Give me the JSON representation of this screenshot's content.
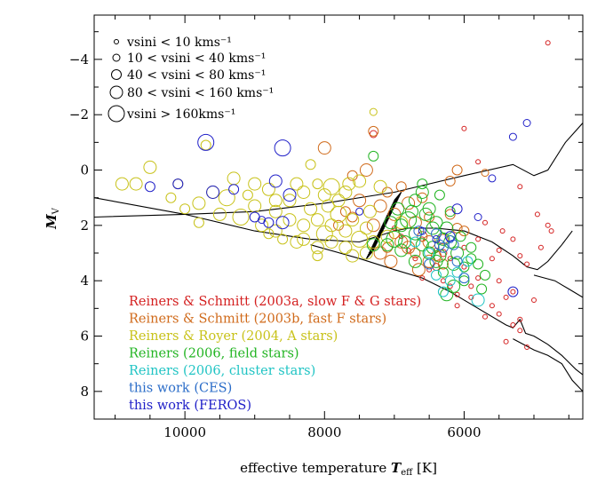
{
  "chart_data": {
    "type": "scatter",
    "xlabel_main": "effective temperature ",
    "xlabel_var": "T",
    "xlabel_sub": "eff",
    "xlabel_unit": " [K]",
    "ylabel_var": "M",
    "ylabel_sub": "V",
    "x_reversed": true,
    "y_reversed": true,
    "xlim": [
      11300,
      4300
    ],
    "ylim": [
      9.0,
      -5.6
    ],
    "x_ticks": [
      10000,
      8000,
      6000
    ],
    "x_tick_labels": [
      "10000",
      "8000",
      "6000"
    ],
    "y_ticks": [
      -4,
      -2,
      0,
      2,
      4,
      6,
      8
    ],
    "y_tick_labels": [
      "−4",
      "−2",
      "0",
      "2",
      "4",
      "6",
      "8"
    ],
    "size_legend": [
      {
        "label": "vsini <  10 kms⁻¹",
        "radius": 2.5
      },
      {
        "label": " 10 < vsini <  40 kms⁻¹",
        "radius": 4
      },
      {
        "label": " 40 < vsini <  80 kms⁻¹",
        "radius": 5.5
      },
      {
        "label": " 80 < vsini < 160 kms⁻¹",
        "radius": 7
      },
      {
        "label": "vsini > 160kms⁻¹",
        "radius": 9
      }
    ],
    "series": [
      {
        "name": "Reiners & Schmitt (2003a, slow F & G stars)",
        "color": "#d42020"
      },
      {
        "name": "Reiners & Schmitt (2003b, fast F stars)",
        "color": "#d06a1a"
      },
      {
        "name": "Reiners & Royer (2004, A stars)",
        "color": "#c8c21a"
      },
      {
        "name": "Reiners (2006, field stars)",
        "color": "#22b422"
      },
      {
        "name": "Reiners (2006, cluster stars)",
        "color": "#20c4c4"
      },
      {
        "name": "this work (CES)",
        "color": "#2a6cc8"
      },
      {
        "name": "this work (FEROS)",
        "color": "#2020c8"
      }
    ],
    "isochrones": [
      [
        [
          11300,
          1.7
        ],
        [
          10000,
          1.6
        ],
        [
          9000,
          1.5
        ],
        [
          8000,
          1.2
        ],
        [
          7000,
          0.8
        ],
        [
          6000,
          0.2
        ],
        [
          5300,
          -0.2
        ],
        [
          5000,
          0.2
        ],
        [
          4800,
          0.0
        ],
        [
          4550,
          -1.0
        ],
        [
          4300,
          -1.7
        ]
      ],
      [
        [
          11300,
          1.0
        ],
        [
          10000,
          1.6
        ],
        [
          9000,
          2.2
        ],
        [
          8200,
          2.5
        ],
        [
          7500,
          2.6
        ],
        [
          7000,
          2.2
        ],
        [
          6800,
          2.1
        ],
        [
          6400,
          2.1
        ],
        [
          6000,
          2.2
        ],
        [
          5600,
          2.6
        ],
        [
          5300,
          3.1
        ],
        [
          5100,
          3.5
        ],
        [
          4950,
          3.6
        ],
        [
          4800,
          3.3
        ],
        [
          4600,
          2.7
        ],
        [
          4450,
          2.2
        ]
      ],
      [
        [
          8200,
          2.7
        ],
        [
          7500,
          3.2
        ],
        [
          7000,
          3.6
        ],
        [
          6600,
          3.9
        ],
        [
          6200,
          4.4
        ],
        [
          5800,
          5.0
        ],
        [
          5400,
          5.6
        ],
        [
          5300,
          5.7
        ],
        [
          5200,
          5.4
        ],
        [
          5120,
          5.9
        ],
        [
          5000,
          6.0
        ],
        [
          4800,
          6.3
        ],
        [
          4600,
          6.7
        ],
        [
          4400,
          7.2
        ],
        [
          4300,
          7.4
        ]
      ],
      [
        [
          5000,
          3.8
        ],
        [
          4700,
          4.0
        ],
        [
          4500,
          4.3
        ],
        [
          4300,
          4.6
        ]
      ],
      [
        [
          5300,
          6.1
        ],
        [
          5000,
          6.5
        ],
        [
          4800,
          6.7
        ],
        [
          4600,
          7.0
        ],
        [
          4450,
          7.6
        ],
        [
          4300,
          8.0
        ]
      ]
    ],
    "hatch_band": {
      "x": [
        7350,
        6950
      ],
      "y_top": [
        2.9,
        0.8
      ],
      "y_bottom": [
        3.2,
        1.1
      ]
    },
    "points": [
      [
        0,
        7300,
        -1.3,
        1
      ],
      [
        0,
        6000,
        -1.5,
        0
      ],
      [
        0,
        5800,
        -0.3,
        0
      ],
      [
        0,
        5200,
        0.6,
        0
      ],
      [
        0,
        4800,
        -4.6,
        0
      ],
      [
        0,
        4950,
        1.6,
        0
      ],
      [
        0,
        4900,
        2.8,
        0
      ],
      [
        0,
        4800,
        2.0,
        0
      ],
      [
        0,
        4750,
        2.2,
        0
      ],
      [
        0,
        5200,
        3.1,
        0
      ],
      [
        0,
        5100,
        3.4,
        0
      ],
      [
        0,
        5400,
        4.6,
        0
      ],
      [
        0,
        5300,
        4.4,
        0
      ],
      [
        0,
        5500,
        5.2,
        0
      ],
      [
        0,
        5200,
        5.8,
        0
      ],
      [
        0,
        5100,
        6.4,
        0
      ],
      [
        0,
        5400,
        6.2,
        0
      ],
      [
        0,
        5600,
        4.9,
        0
      ],
      [
        0,
        5700,
        5.3,
        0
      ],
      [
        0,
        5900,
        4.6,
        0
      ],
      [
        0,
        6100,
        4.9,
        0
      ],
      [
        0,
        5800,
        3.9,
        0
      ],
      [
        0,
        6000,
        3.5,
        0
      ],
      [
        0,
        6200,
        3.2,
        0
      ],
      [
        0,
        6300,
        3.0,
        1
      ],
      [
        0,
        6400,
        2.9,
        0
      ],
      [
        0,
        6600,
        2.5,
        0
      ],
      [
        0,
        6700,
        3.2,
        0
      ],
      [
        0,
        6500,
        3.6,
        0
      ],
      [
        0,
        6800,
        2.9,
        0
      ],
      [
        0,
        6900,
        2.4,
        0
      ],
      [
        0,
        7000,
        2.1,
        0
      ],
      [
        0,
        6600,
        3.9,
        0
      ],
      [
        0,
        6400,
        3.5,
        1
      ],
      [
        0,
        6200,
        4.2,
        0
      ],
      [
        0,
        6100,
        4.5,
        0
      ],
      [
        0,
        5900,
        4.2,
        0
      ],
      [
        0,
        6300,
        4.0,
        0
      ],
      [
        0,
        5600,
        3.2,
        0
      ],
      [
        0,
        5500,
        2.9,
        0
      ],
      [
        0,
        5300,
        2.5,
        0
      ],
      [
        0,
        5800,
        2.5,
        0
      ],
      [
        0,
        6000,
        2.8,
        0
      ],
      [
        0,
        5700,
        1.9,
        0
      ],
      [
        0,
        5450,
        2.2,
        0
      ],
      [
        0,
        5500,
        4.0,
        0
      ],
      [
        0,
        5300,
        5.6,
        0
      ],
      [
        0,
        5200,
        5.4,
        0
      ],
      [
        0,
        5000,
        4.7,
        0
      ],
      [
        1,
        7300,
        -1.4,
        2
      ],
      [
        1,
        7100,
        0.8,
        2
      ],
      [
        1,
        6900,
        0.6,
        2
      ],
      [
        1,
        7400,
        0.0,
        3
      ],
      [
        1,
        7600,
        0.2,
        2
      ],
      [
        1,
        7500,
        1.1,
        3
      ],
      [
        1,
        7700,
        1.5,
        2
      ],
      [
        1,
        7200,
        1.3,
        3
      ],
      [
        1,
        7000,
        1.6,
        3
      ],
      [
        1,
        6800,
        1.2,
        3
      ],
      [
        1,
        6600,
        1.0,
        2
      ],
      [
        1,
        6700,
        1.9,
        3
      ],
      [
        1,
        7000,
        2.3,
        2
      ],
      [
        1,
        6900,
        2.6,
        3
      ],
      [
        1,
        6800,
        2.8,
        3
      ],
      [
        1,
        6600,
        2.4,
        2
      ],
      [
        1,
        6500,
        2.6,
        3
      ],
      [
        1,
        6400,
        3.1,
        2
      ],
      [
        1,
        6300,
        3.4,
        2
      ],
      [
        1,
        6700,
        3.0,
        2
      ],
      [
        1,
        7100,
        2.8,
        2
      ],
      [
        1,
        7200,
        3.0,
        3
      ],
      [
        1,
        6500,
        3.3,
        3
      ],
      [
        1,
        7800,
        2.0,
        2
      ],
      [
        1,
        8000,
        -0.8,
        3
      ],
      [
        1,
        6200,
        0.4,
        2
      ],
      [
        1,
        6100,
        0.0,
        2
      ],
      [
        1,
        6500,
        1.7,
        2
      ],
      [
        1,
        6300,
        2.5,
        2
      ],
      [
        1,
        7300,
        2.0,
        3
      ],
      [
        1,
        7050,
        3.3,
        3
      ],
      [
        1,
        6650,
        3.6,
        3
      ],
      [
        1,
        6100,
        2.1,
        2
      ],
      [
        1,
        6200,
        1.6,
        2
      ],
      [
        1,
        6000,
        2.2,
        2
      ],
      [
        1,
        7600,
        1.7,
        2
      ],
      [
        1,
        5700,
        0.1,
        1
      ],
      [
        2,
        7300,
        -2.1,
        1
      ],
      [
        2,
        9700,
        -0.9,
        2
      ],
      [
        2,
        10100,
        0.5,
        2
      ],
      [
        2,
        10700,
        0.5,
        3
      ],
      [
        2,
        10500,
        -0.1,
        3
      ],
      [
        2,
        10200,
        1.0,
        2
      ],
      [
        2,
        9800,
        1.2,
        3
      ],
      [
        2,
        9600,
        0.8,
        3
      ],
      [
        2,
        9400,
        1.0,
        4
      ],
      [
        2,
        9300,
        0.3,
        3
      ],
      [
        2,
        9000,
        0.5,
        3
      ],
      [
        2,
        8800,
        0.7,
        3
      ],
      [
        2,
        8700,
        1.1,
        3
      ],
      [
        2,
        8400,
        0.5,
        3
      ],
      [
        2,
        8300,
        0.8,
        3
      ],
      [
        2,
        8100,
        0.5,
        2
      ],
      [
        2,
        8000,
        0.9,
        3
      ],
      [
        2,
        7900,
        0.6,
        4
      ],
      [
        2,
        7800,
        1.1,
        3
      ],
      [
        2,
        7700,
        0.8,
        3
      ],
      [
        2,
        9500,
        1.6,
        3
      ],
      [
        2,
        9200,
        1.7,
        4
      ],
      [
        2,
        9000,
        1.3,
        3
      ],
      [
        2,
        8900,
        2.0,
        3
      ],
      [
        2,
        8700,
        2.2,
        3
      ],
      [
        2,
        8500,
        1.8,
        3
      ],
      [
        2,
        8300,
        2.0,
        3
      ],
      [
        2,
        8200,
        1.4,
        3
      ],
      [
        2,
        8100,
        1.8,
        3
      ],
      [
        2,
        8000,
        2.3,
        4
      ],
      [
        2,
        7900,
        2.0,
        3
      ],
      [
        2,
        7800,
        1.6,
        4
      ],
      [
        2,
        7700,
        2.2,
        3
      ],
      [
        2,
        7600,
        1.8,
        3
      ],
      [
        2,
        7500,
        2.5,
        4
      ],
      [
        2,
        7400,
        2.1,
        3
      ],
      [
        2,
        7300,
        2.6,
        3
      ],
      [
        2,
        7700,
        2.8,
        3
      ],
      [
        2,
        7900,
        2.6,
        3
      ],
      [
        2,
        8100,
        2.8,
        3
      ],
      [
        2,
        8300,
        2.5,
        3
      ],
      [
        2,
        7600,
        3.1,
        3
      ],
      [
        2,
        7400,
        3.0,
        3
      ],
      [
        2,
        8100,
        3.1,
        2
      ],
      [
        2,
        8700,
        1.5,
        3
      ],
      [
        2,
        9100,
        0.9,
        2
      ],
      [
        2,
        10900,
        0.5,
        3
      ],
      [
        2,
        10000,
        1.4,
        2
      ],
      [
        2,
        8500,
        1.1,
        3
      ],
      [
        2,
        8600,
        2.5,
        2
      ],
      [
        2,
        7200,
        0.6,
        3
      ],
      [
        2,
        8200,
        -0.2,
        2
      ],
      [
        2,
        7500,
        0.4,
        3
      ],
      [
        2,
        9800,
        1.9,
        2
      ],
      [
        2,
        8800,
        2.3,
        2
      ],
      [
        2,
        7950,
        1.3,
        3
      ],
      [
        2,
        7650,
        0.5,
        3
      ],
      [
        2,
        8400,
        2.6,
        3
      ],
      [
        2,
        7350,
        1.5,
        3
      ],
      [
        2,
        6900,
        1.9,
        3
      ],
      [
        2,
        7100,
        2.4,
        3
      ],
      [
        3,
        6700,
        1.1,
        3
      ],
      [
        3,
        6600,
        0.8,
        3
      ],
      [
        3,
        6500,
        1.4,
        3
      ],
      [
        3,
        6400,
        1.9,
        3
      ],
      [
        3,
        6300,
        2.5,
        3
      ],
      [
        3,
        6200,
        2.6,
        3
      ],
      [
        3,
        6100,
        3.0,
        3
      ],
      [
        3,
        6000,
        3.5,
        2
      ],
      [
        3,
        5900,
        3.2,
        2
      ],
      [
        3,
        6800,
        1.8,
        4
      ],
      [
        3,
        6900,
        2.0,
        3
      ],
      [
        3,
        7000,
        2.5,
        4
      ],
      [
        3,
        6700,
        2.3,
        3
      ],
      [
        3,
        6600,
        2.7,
        3
      ],
      [
        3,
        6500,
        3.0,
        3
      ],
      [
        3,
        6400,
        3.3,
        3
      ],
      [
        3,
        6300,
        3.7,
        2
      ],
      [
        3,
        6700,
        3.3,
        3
      ],
      [
        3,
        6900,
        2.9,
        3
      ],
      [
        3,
        7100,
        2.7,
        3
      ],
      [
        3,
        7300,
        2.7,
        3
      ],
      [
        3,
        6450,
        2.1,
        3
      ],
      [
        3,
        6550,
        1.6,
        3
      ],
      [
        3,
        6350,
        0.9,
        2
      ],
      [
        3,
        6600,
        0.5,
        2
      ],
      [
        3,
        6200,
        1.5,
        2
      ],
      [
        3,
        6250,
        2.1,
        3
      ],
      [
        3,
        6050,
        2.4,
        2
      ],
      [
        3,
        5900,
        2.8,
        2
      ],
      [
        3,
        5800,
        3.4,
        2
      ],
      [
        3,
        5750,
        4.3,
        2
      ],
      [
        3,
        6150,
        4.2,
        3
      ],
      [
        3,
        6250,
        4.5,
        3
      ],
      [
        3,
        6000,
        4.0,
        2
      ],
      [
        3,
        5700,
        3.8,
        2
      ],
      [
        3,
        6750,
        1.5,
        3
      ],
      [
        3,
        6850,
        2.6,
        3
      ],
      [
        3,
        7050,
        1.9,
        3
      ],
      [
        3,
        6950,
        1.4,
        3
      ],
      [
        3,
        6450,
        2.8,
        3
      ],
      [
        3,
        6350,
        3.1,
        3
      ],
      [
        3,
        6150,
        3.4,
        3
      ],
      [
        3,
        7300,
        -0.5,
        2
      ],
      [
        4,
        6300,
        4.4,
        2
      ],
      [
        4,
        6200,
        4.0,
        2
      ],
      [
        4,
        6100,
        3.7,
        2
      ],
      [
        4,
        5950,
        3.3,
        2
      ],
      [
        4,
        5800,
        4.7,
        3
      ],
      [
        4,
        6400,
        3.8,
        2
      ],
      [
        4,
        6700,
        2.6,
        2
      ],
      [
        4,
        6500,
        3.0,
        2
      ],
      [
        5,
        6000,
        3.9,
        2
      ],
      [
        5,
        6100,
        3.3,
        2
      ],
      [
        5,
        6400,
        2.3,
        2
      ],
      [
        5,
        6300,
        2.8,
        2
      ],
      [
        5,
        6200,
        2.5,
        1
      ],
      [
        5,
        6500,
        3.4,
        2
      ],
      [
        5,
        6150,
        2.7,
        2
      ],
      [
        5,
        6350,
        2.7,
        2
      ],
      [
        5,
        6650,
        2.2,
        2
      ],
      [
        6,
        9600,
        0.8,
        3
      ],
      [
        6,
        9700,
        -1.0,
        4
      ],
      [
        6,
        8700,
        0.4,
        3
      ],
      [
        6,
        8600,
        -0.8,
        4
      ],
      [
        6,
        10100,
        0.5,
        2
      ],
      [
        6,
        10500,
        0.6,
        2
      ],
      [
        6,
        8500,
        0.9,
        3
      ],
      [
        6,
        9000,
        1.7,
        2
      ],
      [
        6,
        8900,
        1.8,
        1
      ],
      [
        6,
        8600,
        1.9,
        3
      ],
      [
        6,
        8800,
        1.9,
        2
      ],
      [
        6,
        5600,
        0.3,
        1
      ],
      [
        6,
        5300,
        -1.2,
        1
      ],
      [
        6,
        5100,
        -1.7,
        1
      ],
      [
        6,
        5800,
        1.7,
        1
      ],
      [
        6,
        5300,
        4.4,
        2
      ],
      [
        6,
        6100,
        1.4,
        2
      ],
      [
        6,
        6200,
        2.4,
        2
      ],
      [
        6,
        6600,
        2.2,
        1
      ],
      [
        6,
        6400,
        2.5,
        1
      ],
      [
        6,
        7500,
        1.5,
        1
      ],
      [
        6,
        9300,
        0.7,
        2
      ]
    ]
  }
}
